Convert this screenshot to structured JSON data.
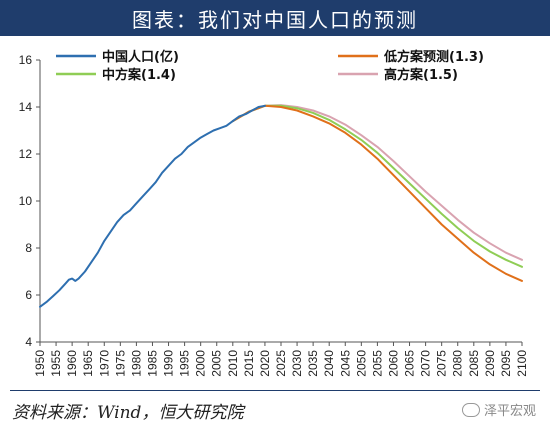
{
  "title": "图表：我们对中国人口的预测",
  "source": "资料来源：Wind，恒大研究院",
  "watermark": "泽平宏观",
  "colors": {
    "title_bg": "#1f3d6c",
    "history": "#2e6fb0",
    "low": "#e0701a",
    "mid": "#8fcd55",
    "high": "#d9a3b0"
  },
  "chart_data": {
    "type": "line",
    "title": "",
    "xlabel": "",
    "ylabel": "",
    "ylim": [
      4,
      16
    ],
    "yticks": [
      4,
      6,
      8,
      10,
      12,
      14,
      16
    ],
    "xlim": [
      1950,
      2100
    ],
    "xticks": [
      1950,
      1955,
      1960,
      1965,
      1970,
      1975,
      1980,
      1985,
      1990,
      1995,
      2000,
      2005,
      2010,
      2015,
      2020,
      2025,
      2030,
      2035,
      2040,
      2045,
      2050,
      2055,
      2060,
      2065,
      2070,
      2075,
      2080,
      2085,
      2090,
      2095,
      2100
    ],
    "legend_position": "top",
    "series": [
      {
        "name": "中国人口(亿)",
        "color": "#2e6fb0",
        "x": [
          1950,
          1952,
          1954,
          1956,
          1958,
          1959,
          1960,
          1961,
          1962,
          1964,
          1966,
          1968,
          1970,
          1972,
          1974,
          1976,
          1978,
          1980,
          1982,
          1984,
          1986,
          1988,
          1990,
          1992,
          1994,
          1996,
          1998,
          2000,
          2002,
          2004,
          2006,
          2008,
          2010,
          2012,
          2014,
          2016,
          2018,
          2020
        ],
        "y": [
          5.5,
          5.7,
          5.95,
          6.2,
          6.5,
          6.65,
          6.7,
          6.6,
          6.7,
          7.0,
          7.4,
          7.8,
          8.3,
          8.7,
          9.1,
          9.4,
          9.6,
          9.9,
          10.2,
          10.5,
          10.8,
          11.2,
          11.5,
          11.8,
          12.0,
          12.3,
          12.5,
          12.7,
          12.85,
          13.0,
          13.1,
          13.2,
          13.4,
          13.6,
          13.7,
          13.85,
          14.0,
          14.05
        ]
      },
      {
        "name": "低方案预测(1.3)",
        "color": "#e0701a",
        "x": [
          2010,
          2015,
          2020,
          2025,
          2030,
          2035,
          2040,
          2045,
          2050,
          2055,
          2060,
          2065,
          2070,
          2075,
          2080,
          2085,
          2090,
          2095,
          2100
        ],
        "y": [
          13.4,
          13.8,
          14.05,
          14.0,
          13.85,
          13.6,
          13.3,
          12.9,
          12.4,
          11.8,
          11.1,
          10.4,
          9.7,
          9.0,
          8.4,
          7.8,
          7.3,
          6.9,
          6.6
        ]
      },
      {
        "name": "中方案(1.4)",
        "color": "#8fcd55",
        "x": [
          2010,
          2015,
          2020,
          2025,
          2030,
          2035,
          2040,
          2045,
          2050,
          2055,
          2060,
          2065,
          2070,
          2075,
          2080,
          2085,
          2090,
          2095,
          2100
        ],
        "y": [
          13.4,
          13.8,
          14.05,
          14.05,
          13.95,
          13.75,
          13.45,
          13.05,
          12.6,
          12.05,
          11.4,
          10.75,
          10.1,
          9.45,
          8.85,
          8.3,
          7.85,
          7.5,
          7.2
        ]
      },
      {
        "name": "高方案(1.5)",
        "color": "#d9a3b0",
        "x": [
          2010,
          2015,
          2020,
          2025,
          2030,
          2035,
          2040,
          2045,
          2050,
          2055,
          2060,
          2065,
          2070,
          2075,
          2080,
          2085,
          2090,
          2095,
          2100
        ],
        "y": [
          13.4,
          13.8,
          14.05,
          14.08,
          14.0,
          13.85,
          13.6,
          13.25,
          12.8,
          12.3,
          11.7,
          11.05,
          10.4,
          9.8,
          9.2,
          8.65,
          8.2,
          7.8,
          7.5
        ]
      }
    ]
  }
}
